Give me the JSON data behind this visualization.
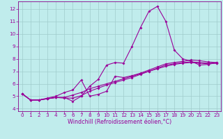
{
  "xlabel": "Windchill (Refroidissement éolien,°C)",
  "bg_color": "#c0ecec",
  "grid_color": "#a0cccc",
  "line_color": "#990099",
  "spine_color": "#880088",
  "xlim": [
    -0.5,
    23.5
  ],
  "ylim": [
    3.8,
    12.6
  ],
  "xticks": [
    0,
    1,
    2,
    3,
    4,
    5,
    6,
    7,
    8,
    9,
    10,
    11,
    12,
    13,
    14,
    15,
    16,
    17,
    18,
    19,
    20,
    21,
    22,
    23
  ],
  "yticks": [
    4,
    5,
    6,
    7,
    8,
    9,
    10,
    11,
    12
  ],
  "series": [
    [
      5.2,
      4.7,
      4.7,
      4.8,
      4.9,
      4.9,
      4.6,
      5.0,
      5.8,
      6.35,
      7.5,
      7.7,
      7.65,
      9.0,
      10.5,
      11.8,
      12.2,
      11.0,
      8.7,
      8.0,
      7.8,
      7.5,
      7.55,
      7.7
    ],
    [
      5.2,
      4.7,
      4.7,
      4.8,
      4.9,
      4.9,
      5.1,
      5.3,
      5.6,
      5.8,
      6.0,
      6.2,
      6.4,
      6.6,
      6.8,
      7.0,
      7.2,
      7.4,
      7.55,
      7.65,
      7.7,
      7.65,
      7.6,
      7.65
    ],
    [
      5.2,
      4.7,
      4.7,
      4.8,
      4.9,
      4.85,
      4.85,
      5.05,
      5.4,
      5.65,
      5.9,
      6.1,
      6.3,
      6.5,
      6.75,
      7.0,
      7.25,
      7.5,
      7.6,
      7.7,
      7.75,
      7.7,
      7.65,
      7.65
    ],
    [
      5.2,
      4.7,
      4.7,
      4.85,
      5.0,
      5.3,
      5.5,
      6.3,
      5.0,
      5.15,
      5.4,
      6.6,
      6.5,
      6.65,
      6.85,
      7.1,
      7.35,
      7.6,
      7.7,
      7.8,
      7.9,
      7.85,
      7.75,
      7.7
    ]
  ],
  "tick_fontsize": 5.2,
  "xlabel_fontsize": 5.8,
  "marker_size": 2.0,
  "linewidth": 0.8
}
